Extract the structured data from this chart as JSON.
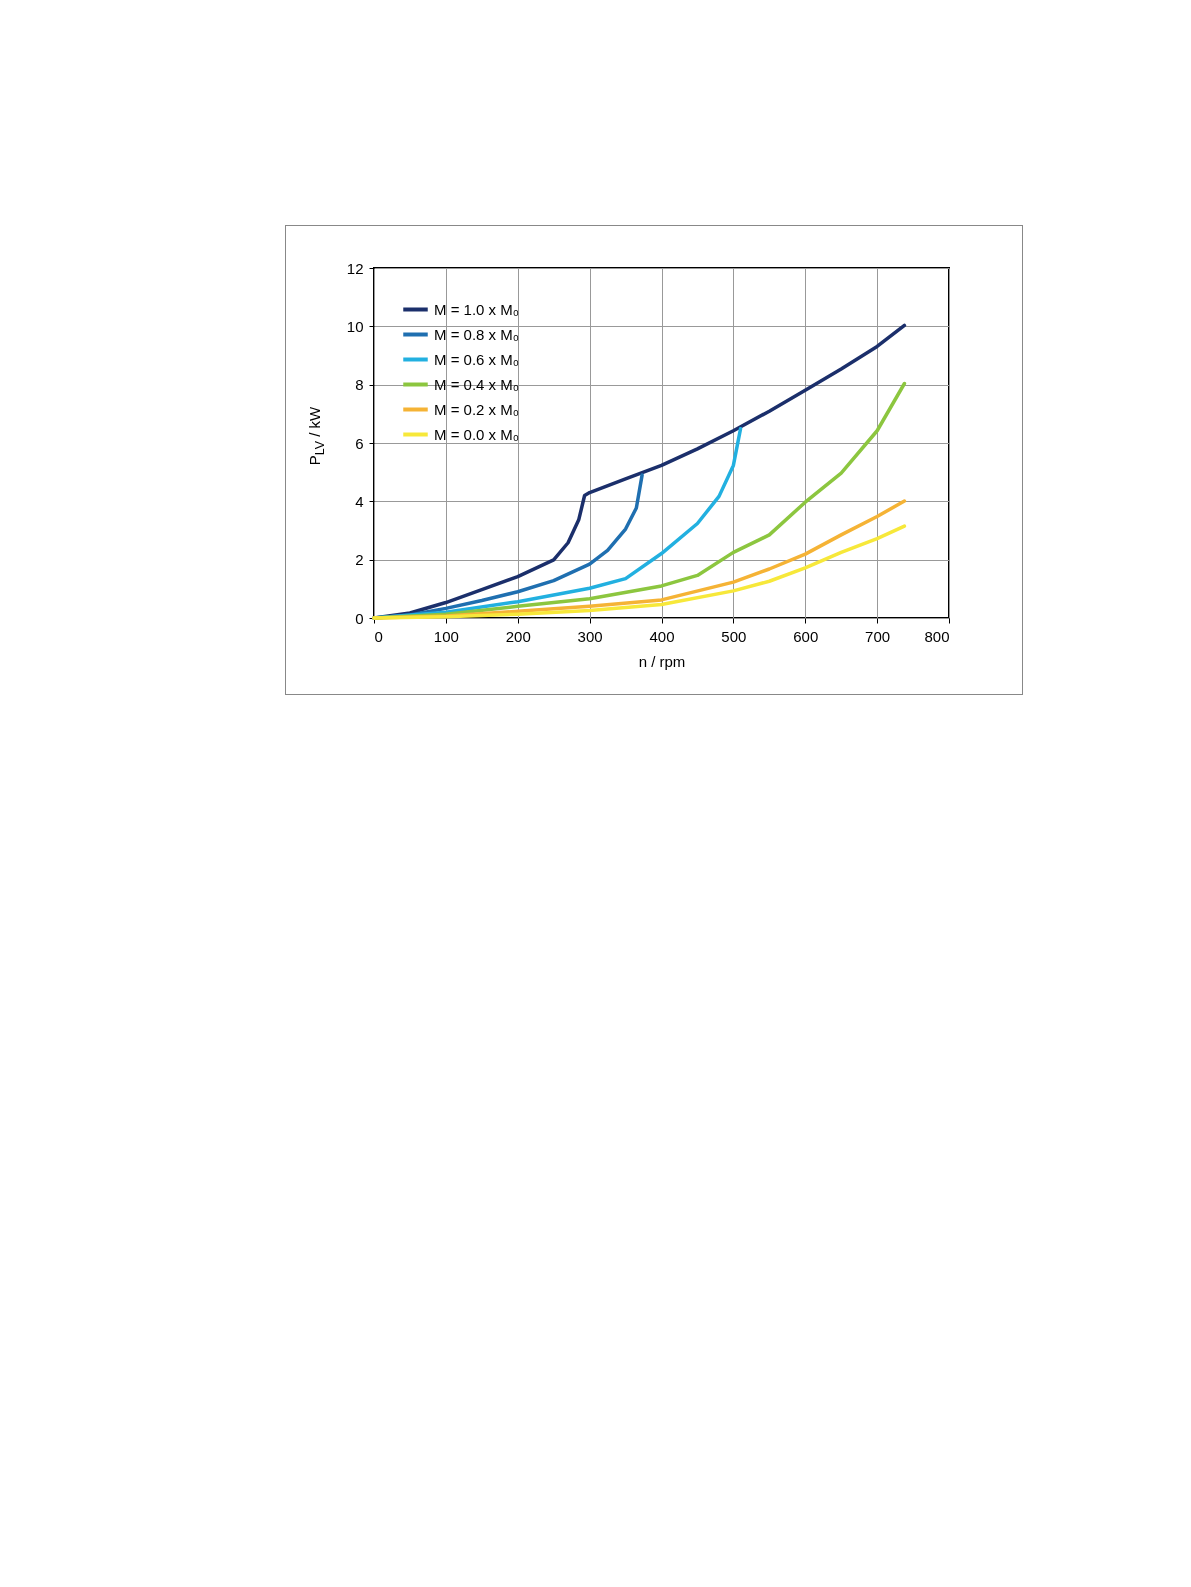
{
  "chart_data": {
    "type": "line",
    "xlabel": "n / rpm",
    "ylabel": "P$_{LV}$ / kW",
    "xlim": [
      0,
      800
    ],
    "xticks": [
      0,
      100,
      200,
      300,
      400,
      500,
      600,
      700,
      800
    ],
    "ylim": [
      0,
      12
    ],
    "yticks": [
      0,
      2,
      4,
      6,
      8,
      10,
      12
    ],
    "grid": true,
    "legend": "top left",
    "marker": "none",
    "line_style": "solid",
    "series": [
      {
        "name": "M = 1.0 x M₀",
        "color": "#1b2f6b",
        "x": [
          0,
          50,
          100,
          150,
          200,
          250,
          270,
          285,
          293,
          300,
          350,
          400,
          450,
          500,
          550,
          600,
          650,
          700,
          738
        ],
        "values": [
          0,
          0.17,
          0.53,
          0.97,
          1.42,
          1.99,
          2.58,
          3.38,
          4.2,
          4.3,
          4.77,
          5.23,
          5.8,
          6.42,
          7.09,
          7.81,
          8.54,
          9.31,
          10.03
        ]
      },
      {
        "name": "M = 0.8 x M₀",
        "color": "#1f6fb0",
        "x": [
          0,
          50,
          100,
          150,
          200,
          250,
          300,
          325,
          350,
          365,
          373
        ],
        "values": [
          0,
          0.1,
          0.33,
          0.6,
          0.9,
          1.28,
          1.85,
          2.32,
          3.05,
          3.77,
          4.9
        ]
      },
      {
        "name": "M = 0.6 x M₀",
        "color": "#22b0e0",
        "x": [
          0,
          100,
          200,
          300,
          350,
          400,
          450,
          480,
          500,
          510
        ],
        "values": [
          0,
          0.2,
          0.56,
          1.02,
          1.35,
          2.21,
          3.24,
          4.17,
          5.23,
          6.49
        ]
      },
      {
        "name": "M = 0.4 x M₀",
        "color": "#8cc63f",
        "x": [
          0,
          100,
          200,
          300,
          400,
          450,
          500,
          550,
          600,
          650,
          700,
          738
        ],
        "values": [
          0,
          0.13,
          0.4,
          0.66,
          1.1,
          1.46,
          2.25,
          2.85,
          3.97,
          4.97,
          6.42,
          8.04
        ]
      },
      {
        "name": "M = 0.2 x M₀",
        "color": "#f5b335",
        "x": [
          0,
          100,
          200,
          300,
          400,
          500,
          550,
          600,
          650,
          700,
          738
        ],
        "values": [
          0,
          0.07,
          0.23,
          0.4,
          0.62,
          1.23,
          1.68,
          2.19,
          2.85,
          3.48,
          4.01
        ]
      },
      {
        "name": "M = 0.0 x M₀",
        "color": "#f7e83a",
        "x": [
          0,
          100,
          200,
          300,
          400,
          500,
          550,
          600,
          650,
          700,
          738
        ],
        "values": [
          0,
          0.04,
          0.13,
          0.26,
          0.46,
          0.93,
          1.26,
          1.72,
          2.25,
          2.72,
          3.15
        ]
      }
    ]
  }
}
